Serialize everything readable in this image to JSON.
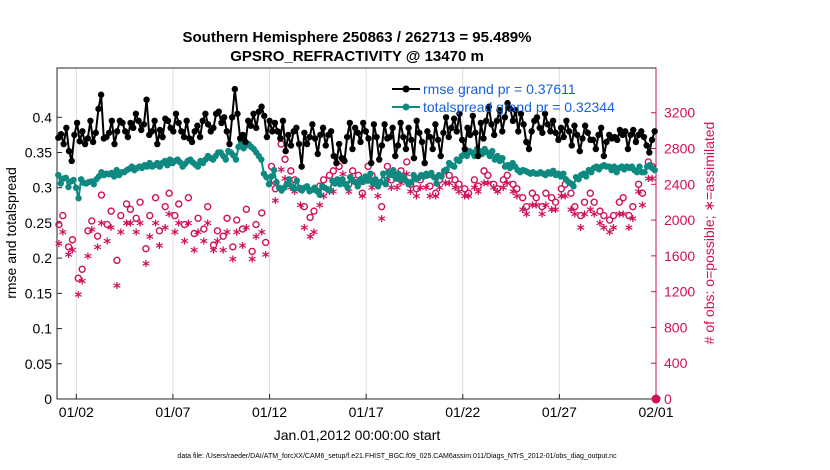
{
  "chart_data": {
    "type": "line",
    "title": "Southern Hemisphere 250863 / 262713 = 95.489%",
    "subtitle": "GPSRO_REFRACTIVITY @ 13470 m",
    "xlabel": "Jan.01,2012 00:00:00 start",
    "ylabel": "rmse and totalspread",
    "y2label": "# of obs: o=possible; ∗=assimilated",
    "footer": "data file: /Users/raeder/DAI/ATM_forcXX/CAM6_setup/f.e21.FHIST_BGC.f09_025.CAM6assim.011/Diags_NTrS_2012-01/obs_diag_output.nc",
    "x_tick_labels": [
      "01/02",
      "01/07",
      "01/12",
      "01/17",
      "01/22",
      "01/27",
      "02/01"
    ],
    "x_tick_days": [
      1,
      6,
      11,
      16,
      21,
      26,
      31
    ],
    "xlim_days": [
      0,
      31
    ],
    "ylim": [
      0,
      0.47
    ],
    "y_ticks": [
      "0",
      "0.05",
      "0.1",
      "0.15",
      "0.2",
      "0.25",
      "0.3",
      "0.35",
      "0.4"
    ],
    "y2lim": [
      0,
      3700
    ],
    "y2_ticks": [
      "0",
      "400",
      "800",
      "1200",
      "1600",
      "2000",
      "2400",
      "2800",
      "3200"
    ],
    "grid": "vertical",
    "legend_placement": "top-right",
    "colors": {
      "rmse": "#000000",
      "spread": "#0e8a80",
      "obs": "#d0105a",
      "legend_text": "#1a5fd9"
    },
    "series": [
      {
        "name": "rmse grand pr = 0.37611",
        "values": [
          0.371,
          0.376,
          0.362,
          0.385,
          0.352,
          0.338,
          0.375,
          0.392,
          0.366,
          0.38,
          0.362,
          0.37,
          0.395,
          0.365,
          0.378,
          0.412,
          0.432,
          0.37,
          0.372,
          0.378,
          0.395,
          0.362,
          0.38,
          0.395,
          0.392,
          0.38,
          0.372,
          0.392,
          0.385,
          0.405,
          0.395,
          0.382,
          0.39,
          0.425,
          0.375,
          0.38,
          0.395,
          0.362,
          0.382,
          0.372,
          0.398,
          0.395,
          0.385,
          0.38,
          0.405,
          0.392,
          0.38,
          0.372,
          0.395,
          0.37,
          0.365,
          0.38,
          0.388,
          0.372,
          0.395,
          0.405,
          0.39,
          0.38,
          0.385,
          0.405,
          0.408,
          0.392,
          0.4,
          0.38,
          0.362,
          0.4,
          0.44,
          0.405,
          0.37,
          0.375,
          0.365,
          0.395,
          0.388,
          0.405,
          0.385,
          0.408,
          0.415,
          0.402,
          0.372,
          0.395,
          0.38,
          0.392,
          0.38,
          0.37,
          0.395,
          0.352,
          0.375,
          0.36,
          0.38,
          0.385,
          0.362,
          0.33,
          0.378,
          0.362,
          0.372,
          0.39,
          0.37,
          0.348,
          0.375,
          0.385,
          0.36,
          0.375,
          0.38,
          0.345,
          0.335,
          0.362,
          0.342,
          0.338,
          0.372,
          0.392,
          0.355,
          0.385,
          0.378,
          0.365,
          0.392,
          0.38,
          0.37,
          0.335,
          0.39,
          0.372,
          0.34,
          0.36,
          0.39,
          0.37,
          0.372,
          0.385,
          0.345,
          0.36,
          0.392,
          0.372,
          0.355,
          0.385,
          0.368,
          0.342,
          0.395,
          0.378,
          0.365,
          0.335,
          0.38,
          0.372,
          0.355,
          0.39,
          0.368,
          0.345,
          0.378,
          0.4,
          0.372,
          0.385,
          0.398,
          0.38,
          0.405,
          0.368,
          0.355,
          0.385,
          0.375,
          0.402,
          0.378,
          0.345,
          0.392,
          0.37,
          0.395,
          0.415,
          0.39,
          0.375,
          0.395,
          0.41,
          0.38,
          0.4,
          0.42,
          0.412,
          0.395,
          0.41,
          0.38,
          0.405,
          0.39,
          0.365,
          0.355,
          0.38,
          0.395,
          0.4,
          0.385,
          0.378,
          0.405,
          0.39,
          0.38,
          0.395,
          0.378,
          0.368,
          0.385,
          0.372,
          0.395,
          0.38,
          0.36,
          0.388,
          0.375,
          0.352,
          0.37,
          0.388,
          0.378,
          0.368,
          0.368,
          0.355,
          0.375,
          0.385,
          0.345,
          0.365,
          0.375,
          0.37,
          0.372,
          0.368,
          0.382,
          0.375,
          0.38,
          0.355,
          0.375,
          0.382,
          0.365,
          0.375,
          0.38,
          0.372,
          0.36,
          0.35,
          0.368,
          0.38
        ]
      },
      {
        "name": "totalspread grand pr = 0.32344",
        "values": [
          0.318,
          0.306,
          0.313,
          0.314,
          0.301,
          0.309,
          0.311,
          0.3,
          0.285,
          0.312,
          0.307,
          0.306,
          0.308,
          0.309,
          0.305,
          0.312,
          0.316,
          0.322,
          0.318,
          0.32,
          0.319,
          0.321,
          0.316,
          0.325,
          0.318,
          0.322,
          0.322,
          0.325,
          0.327,
          0.33,
          0.325,
          0.328,
          0.33,
          0.328,
          0.332,
          0.33,
          0.335,
          0.33,
          0.332,
          0.335,
          0.33,
          0.335,
          0.338,
          0.332,
          0.34,
          0.335,
          0.338,
          0.34,
          0.336,
          0.33,
          0.334,
          0.338,
          0.34,
          0.336,
          0.333,
          0.33,
          0.338,
          0.335,
          0.34,
          0.345,
          0.342,
          0.34,
          0.345,
          0.35,
          0.35,
          0.345,
          0.34,
          0.352,
          0.35,
          0.346,
          0.34,
          0.358,
          0.365,
          0.356,
          0.36,
          0.362,
          0.358,
          0.355,
          0.35,
          0.345,
          0.34,
          0.32,
          0.315,
          0.305,
          0.316,
          0.325,
          0.308,
          0.3,
          0.296,
          0.3,
          0.305,
          0.312,
          0.302,
          0.298,
          0.31,
          0.3,
          0.296,
          0.3,
          0.302,
          0.295,
          0.297,
          0.3,
          0.295,
          0.29,
          0.302,
          0.3,
          0.298,
          0.296,
          0.31,
          0.306,
          0.312,
          0.305,
          0.312,
          0.305,
          0.3,
          0.315,
          0.31,
          0.308,
          0.302,
          0.312,
          0.308,
          0.316,
          0.31,
          0.32,
          0.306,
          0.312,
          0.302,
          0.308,
          0.32,
          0.305,
          0.322,
          0.318,
          0.325,
          0.313,
          0.32,
          0.312,
          0.316,
          0.31,
          0.305,
          0.308,
          0.318,
          0.312,
          0.314,
          0.318,
          0.316,
          0.32,
          0.318,
          0.321,
          0.315,
          0.306,
          0.318,
          0.316,
          0.324,
          0.326,
          0.335,
          0.332,
          0.33,
          0.34,
          0.338,
          0.345,
          0.348,
          0.345,
          0.352,
          0.35,
          0.345,
          0.355,
          0.352,
          0.348,
          0.355,
          0.35,
          0.345,
          0.352,
          0.34,
          0.345,
          0.338,
          0.342,
          0.33,
          0.332,
          0.328,
          0.335,
          0.33,
          0.325,
          0.322,
          0.325,
          0.324,
          0.322,
          0.32,
          0.322,
          0.32,
          0.32,
          0.322,
          0.32,
          0.318,
          0.322,
          0.32,
          0.324,
          0.318,
          0.32,
          0.316,
          0.32,
          0.312,
          0.308,
          0.306,
          0.302,
          0.315,
          0.312,
          0.318,
          0.32,
          0.316,
          0.325,
          0.322,
          0.328,
          0.33,
          0.326,
          0.33,
          0.332,
          0.33,
          0.33,
          0.325,
          0.33,
          0.322,
          0.328,
          0.33,
          0.326,
          0.33,
          0.328,
          0.33,
          0.325,
          0.322,
          0.33,
          0.322,
          0.322,
          0.33,
          0.332,
          0.328,
          0.325
        ]
      },
      {
        "name": "obs possible",
        "x": [
          0.1,
          0.3,
          0.6,
          0.8,
          1.1,
          1.3,
          1.6,
          1.8,
          2.1,
          2.3,
          2.6,
          2.8,
          3.1,
          3.3,
          3.6,
          3.8,
          4.1,
          4.3,
          4.6,
          4.8,
          5.1,
          5.3,
          5.6,
          5.8,
          6.1,
          6.3,
          6.6,
          6.8,
          7.1,
          7.3,
          7.6,
          7.8,
          8.1,
          8.3,
          8.6,
          8.8,
          9.1,
          9.3,
          9.6,
          9.8,
          10.1,
          10.3,
          10.6,
          10.8,
          11.1,
          11.3,
          11.6,
          11.8,
          12.1,
          12.3,
          12.6,
          12.8,
          13.1,
          13.3,
          13.6,
          13.8,
          14.1,
          14.3,
          14.6,
          14.8,
          15.1,
          15.3,
          15.6,
          15.8,
          16.1,
          16.3,
          16.6,
          16.8,
          17.1,
          17.3,
          17.6,
          17.8,
          18.1,
          18.3,
          18.6,
          18.8,
          19.1,
          19.3,
          19.6,
          19.8,
          20.1,
          20.3,
          20.6,
          20.8,
          21.1,
          21.3,
          21.6,
          21.8,
          22.1,
          22.3,
          22.6,
          22.8,
          23.1,
          23.3,
          23.6,
          23.8,
          24.1,
          24.3,
          24.6,
          24.8,
          25.1,
          25.3,
          25.6,
          25.8,
          26.1,
          26.3,
          26.6,
          26.8,
          27.1,
          27.3,
          27.6,
          27.8,
          28.1,
          28.3,
          28.6,
          28.8,
          29.1,
          29.3,
          29.6,
          29.8,
          30.1,
          30.3,
          30.6,
          30.8
        ],
        "values": [
          1950,
          2050,
          1700,
          1780,
          1350,
          1450,
          1880,
          1990,
          1820,
          2280,
          1950,
          2100,
          1550,
          2050,
          2180,
          2120,
          2020,
          2200,
          1680,
          2050,
          2250,
          1880,
          2150,
          2300,
          2050,
          2180,
          1950,
          2250,
          1850,
          2020,
          1900,
          2150,
          1720,
          1880,
          1820,
          2020,
          1700,
          2000,
          1900,
          2120,
          1650,
          1950,
          2080,
          1750,
          2600,
          2350,
          2850,
          2680,
          2550,
          2450,
          2350,
          2150,
          2030,
          2100,
          2380,
          2450,
          2500,
          2550,
          2600,
          2680,
          2400,
          2550,
          2500,
          2300,
          2600,
          2500,
          2400,
          2150,
          2600,
          2450,
          2500,
          2550,
          2650,
          2400,
          2350,
          2450,
          2500,
          2380,
          2300,
          2450,
          2550,
          2500,
          2450,
          2400,
          2350,
          2300,
          2450,
          2380,
          2550,
          2500,
          2400,
          2350,
          2450,
          2500,
          2400,
          2350,
          2250,
          2150,
          2300,
          2250,
          2150,
          2300,
          2250,
          2200,
          2350,
          2400,
          2300,
          2150,
          2050,
          2200,
          2300,
          2200,
          2100,
          2050,
          2000,
          2050,
          2200,
          2250,
          2050,
          2150,
          2400,
          2300,
          2650,
          2600
        ]
      },
      {
        "name": "obs assimilated",
        "x": [
          0.1,
          0.3,
          0.6,
          0.8,
          1.1,
          1.3,
          1.6,
          1.8,
          2.1,
          2.3,
          2.6,
          2.8,
          3.1,
          3.3,
          3.6,
          3.8,
          4.1,
          4.3,
          4.6,
          4.8,
          5.1,
          5.3,
          5.6,
          5.8,
          6.1,
          6.3,
          6.6,
          6.8,
          7.1,
          7.3,
          7.6,
          7.8,
          8.1,
          8.3,
          8.6,
          8.8,
          9.1,
          9.3,
          9.6,
          9.8,
          10.1,
          10.3,
          10.6,
          10.8,
          11.1,
          11.3,
          11.6,
          11.8,
          12.1,
          12.3,
          12.6,
          12.8,
          13.1,
          13.3,
          13.6,
          13.8,
          14.1,
          14.3,
          14.6,
          14.8,
          15.1,
          15.3,
          15.6,
          15.8,
          16.1,
          16.3,
          16.6,
          16.8,
          17.1,
          17.3,
          17.6,
          17.8,
          18.1,
          18.3,
          18.6,
          18.8,
          19.1,
          19.3,
          19.6,
          19.8,
          20.1,
          20.3,
          20.6,
          20.8,
          21.1,
          21.3,
          21.6,
          21.8,
          22.1,
          22.3,
          22.6,
          22.8,
          23.1,
          23.3,
          23.6,
          23.8,
          24.1,
          24.3,
          24.6,
          24.8,
          25.1,
          25.3,
          25.6,
          25.8,
          26.1,
          26.3,
          26.6,
          26.8,
          27.1,
          27.3,
          27.6,
          27.8,
          28.1,
          28.3,
          28.6,
          28.8,
          29.1,
          29.3,
          29.6,
          29.8,
          30.1,
          30.3,
          30.6,
          30.8
        ],
        "values": [
          1720,
          1850,
          1600,
          1650,
          1150,
          1300,
          1580,
          1880,
          1680,
          1950,
          1750,
          1900,
          1250,
          1850,
          1950,
          1950,
          1850,
          1950,
          1500,
          1800,
          1950,
          1700,
          1900,
          2050,
          1850,
          1950,
          1750,
          1950,
          1650,
          1850,
          1750,
          1950,
          1650,
          1750,
          1650,
          1850,
          1550,
          1850,
          1700,
          1900,
          1550,
          1800,
          1850,
          1600,
          2400,
          2200,
          2550,
          2450,
          2350,
          2300,
          2150,
          1900,
          1800,
          1850,
          2150,
          2250,
          2300,
          2300,
          2400,
          2500,
          2300,
          2450,
          2400,
          2250,
          2450,
          2350,
          2250,
          2000,
          2450,
          2350,
          2350,
          2400,
          2500,
          2300,
          2250,
          2350,
          2350,
          2250,
          2250,
          2350,
          2400,
          2400,
          2350,
          2300,
          2250,
          2250,
          2350,
          2300,
          2400,
          2400,
          2350,
          2300,
          2350,
          2400,
          2300,
          2250,
          2100,
          2050,
          2150,
          2150,
          2050,
          2150,
          2100,
          2100,
          2250,
          2250,
          2100,
          2050,
          1900,
          2050,
          2100,
          2050,
          1950,
          1900,
          1850,
          1900,
          2050,
          2050,
          1900,
          2000,
          2300,
          2150,
          2450,
          2450
        ]
      }
    ]
  }
}
